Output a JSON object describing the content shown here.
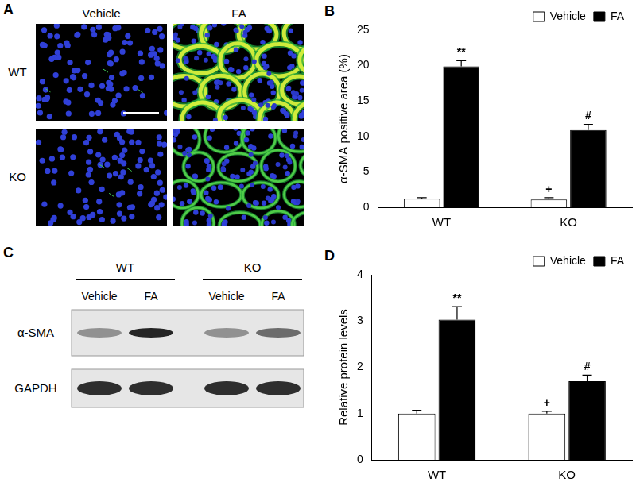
{
  "chart_data": [
    {
      "panel": "B",
      "type": "bar",
      "categories": [
        "WT",
        "KO"
      ],
      "y_label": "α-SMA positive area (%)",
      "ylim": [
        0,
        25
      ],
      "yticks": [
        0,
        5,
        10,
        15,
        20,
        25
      ],
      "grid": false,
      "legend": "upper right",
      "series": [
        {
          "name": "Vehicle",
          "color": "#ffffff",
          "values": [
            1.2,
            1.1
          ],
          "errors": [
            0.15,
            0.25
          ],
          "annotations": [
            null,
            "+"
          ]
        },
        {
          "name": "FA",
          "color": "#000000",
          "values": [
            19.9,
            10.9
          ],
          "errors": [
            0.8,
            0.8
          ],
          "annotations": [
            "**",
            "#"
          ]
        }
      ]
    },
    {
      "panel": "D",
      "type": "bar",
      "categories": [
        "WT",
        "KO"
      ],
      "y_label": "Relative protein levels",
      "ylim": [
        0,
        4
      ],
      "yticks": [
        0,
        1,
        2,
        3,
        4
      ],
      "grid": false,
      "legend": "upper right",
      "series": [
        {
          "name": "Vehicle",
          "color": "#ffffff",
          "values": [
            1.0,
            1.0
          ],
          "errors": [
            0.07,
            0.05
          ],
          "annotations": [
            null,
            "+"
          ]
        },
        {
          "name": "FA",
          "color": "#000000",
          "values": [
            3.03,
            1.7
          ],
          "errors": [
            0.28,
            0.13
          ],
          "annotations": [
            "**",
            "#"
          ]
        }
      ]
    }
  ],
  "micrographs": {
    "panel": "A",
    "columns": [
      "Vehicle",
      "FA"
    ],
    "rows": [
      "WT",
      "KO"
    ]
  },
  "blot": {
    "panel": "C",
    "groups": [
      {
        "label": "WT",
        "lanes": [
          "Vehicle",
          "FA"
        ]
      },
      {
        "label": "KO",
        "lanes": [
          "Vehicle",
          "FA"
        ]
      }
    ],
    "rows": [
      "α-SMA",
      "GAPDH"
    ]
  }
}
